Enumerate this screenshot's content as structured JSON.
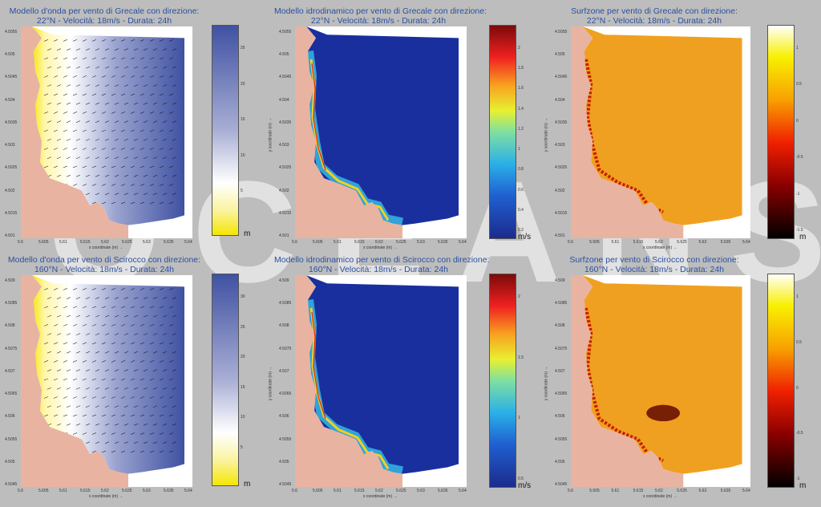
{
  "watermark": "OCEANS",
  "colors": {
    "title": "#2b4fa0",
    "land": "#e8b3a1",
    "wave_deep": "#3f51a2",
    "hydro_deep": "#1a2f9e",
    "surf_base": "#f0a020"
  },
  "panels": [
    {
      "title1": "Modello d'onda per vento di  Grecale con direzione:",
      "title2": "22°N - Velocità: 18m/s - Durata: 24h",
      "yticks": [
        "4.5055",
        "4.505",
        "4.5045",
        "4.504",
        "4.5035",
        "4.503",
        "4.5025",
        "4.502",
        "4.5015",
        "4.501"
      ],
      "xticks": [
        "5.6",
        "5.605",
        "5.61",
        "5.615",
        "5.62",
        "5.625",
        "5.63",
        "5.635",
        "5.64"
      ],
      "xlabel": "x coordinate (m) →",
      "ylabel": "y coordinate (m) →",
      "cbar_ticks": [
        "25",
        "20",
        "15",
        "10",
        "5",
        ""
      ],
      "unit": "m",
      "kind": "wave"
    },
    {
      "title1": "Modello idrodinamico per vento di  Grecale con direzione:",
      "title2": "22°N - Velocità: 18m/s - Durata: 24h",
      "yticks": [
        "4.5055",
        "4.505",
        "4.5045",
        "4.504",
        "4.5035",
        "4.503",
        "4.5025",
        "4.502",
        "4.5015",
        "4.501"
      ],
      "xticks": [
        "5.6",
        "5.605",
        "5.61",
        "5.615",
        "5.62",
        "5.625",
        "5.63",
        "5.635",
        "5.64"
      ],
      "xlabel": "x coordinate (m) →",
      "ylabel": "y coordinate (m) →",
      "cbar_ticks": [
        "2",
        "1.8",
        "1.6",
        "1.4",
        "1.2",
        "1",
        "0.8",
        "0.6",
        "0.4",
        "0.2"
      ],
      "unit": "m/s",
      "kind": "hydro"
    },
    {
      "title1": "Surfzone  per vento di  Grecale con direzione:",
      "title2": "22°N - Velocità: 18m/s - Durata: 24h",
      "yticks": [
        "4.5055",
        "4.505",
        "4.5045",
        "4.504",
        "4.5035",
        "4.503",
        "4.5025",
        "4.502",
        "4.5015",
        "4.501"
      ],
      "xticks": [
        "5.6",
        "5.605",
        "5.61",
        "5.615",
        "5.62",
        "5.625",
        "5.63",
        "5.635",
        "5.64"
      ],
      "xlabel": "x coordinate (m) →",
      "ylabel": "y coordinate (m) →",
      "cbar_ticks": [
        "1",
        "0.5",
        "0",
        "-0.5",
        "-1",
        "-1.5"
      ],
      "unit": "m",
      "kind": "surf"
    },
    {
      "title1": "Modello d'onda per vento di  Scirocco con direzione:",
      "title2": "160°N - Velocità: 18m/s - Durata: 24h",
      "yticks": [
        "4.509",
        "4.5085",
        "4.508",
        "4.5075",
        "4.507",
        "4.5065",
        "4.506",
        "4.5055",
        "4.505",
        "4.5045"
      ],
      "xticks": [
        "5.6",
        "5.605",
        "5.61",
        "5.615",
        "5.62",
        "5.625",
        "5.63",
        "5.635",
        "5.64"
      ],
      "xlabel": "x coordinate (m) →",
      "ylabel": "y coordinate (m) →",
      "cbar_ticks": [
        "30",
        "25",
        "20",
        "15",
        "10",
        "5",
        ""
      ],
      "unit": "m",
      "kind": "wave"
    },
    {
      "title1": "Modello idrodinamico per vento di  Scirocco con direzione:",
      "title2": "160°N - Velocità: 18m/s - Durata: 24h",
      "yticks": [
        "4.509",
        "4.5085",
        "4.508",
        "4.5075",
        "4.507",
        "4.5065",
        "4.506",
        "4.5055",
        "4.505",
        "4.5045"
      ],
      "xticks": [
        "5.6",
        "5.605",
        "5.61",
        "5.615",
        "5.62",
        "5.625",
        "5.63",
        "5.635",
        "5.64"
      ],
      "xlabel": "x coordinate (m) →",
      "ylabel": "y coordinate (m) →",
      "cbar_ticks": [
        "2",
        "1.5",
        "1",
        "0.5"
      ],
      "unit": "m/s",
      "kind": "hydro"
    },
    {
      "title1": "Surfzone  per vento di  Scirocco con direzione:",
      "title2": "160°N - Velocità: 18m/s - Durata: 24h",
      "yticks": [
        "4.509",
        "4.5085",
        "4.508",
        "4.5075",
        "4.507",
        "4.5065",
        "4.506",
        "4.5055",
        "4.505",
        "4.5045"
      ],
      "xticks": [
        "5.6",
        "5.605",
        "5.61",
        "5.615",
        "5.62",
        "5.625",
        "5.63",
        "5.635",
        "5.64"
      ],
      "xlabel": "x coordinate (m) →",
      "ylabel": "y coordinate (m) →",
      "cbar_ticks": [
        "1",
        "0.5",
        "0",
        "-0.5",
        "-1"
      ],
      "unit": "m",
      "kind": "surf"
    }
  ]
}
